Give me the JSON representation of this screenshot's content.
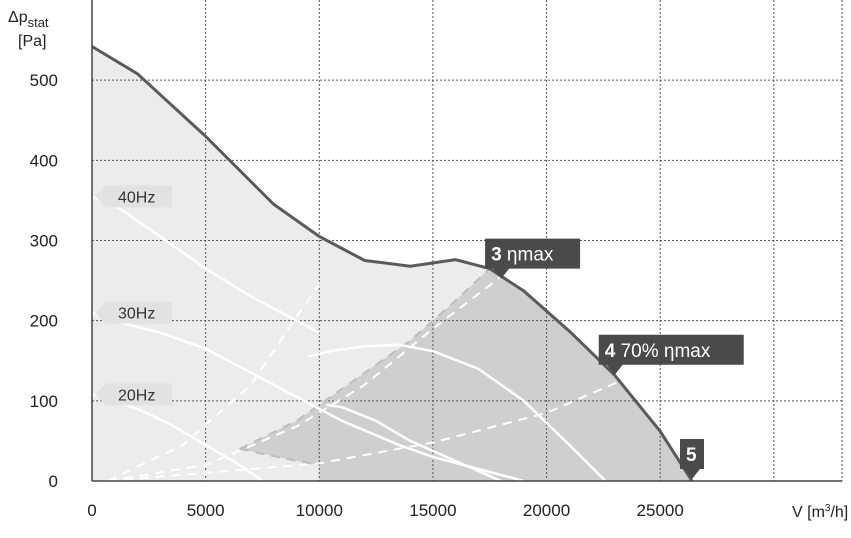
{
  "chart_data": {
    "type": "line",
    "y_axis_label": {
      "symbol": "Δp",
      "subscript": "stat",
      "unit": "[Pa]"
    },
    "x_axis_label": {
      "prefix": "V [m",
      "superscript": "3",
      "suffix": "/h]"
    },
    "xlim": [
      0,
      33000
    ],
    "ylim": [
      0,
      600
    ],
    "x_ticks": [
      0,
      5000,
      10000,
      15000,
      20000,
      25000
    ],
    "x_tick_labels": [
      "0",
      "5000",
      "10000",
      "15000",
      "20000",
      "25000"
    ],
    "y_ticks": [
      0,
      100,
      200,
      300,
      400,
      500
    ],
    "y_tick_labels": [
      "0",
      "100",
      "200",
      "300",
      "400",
      "500"
    ],
    "grid": true,
    "colors": {
      "max_curve": "#5a5a5a",
      "area_outer": "#ececec",
      "area_inner": "#cfcfcf",
      "frequency_curves": "#ffffff",
      "callout_bg": "#4a4a4a"
    },
    "max_curve": {
      "x": [
        0,
        2000,
        5000,
        8000,
        10000,
        12000,
        14000,
        16000,
        17500,
        19000,
        21000,
        23000,
        25000,
        26400
      ],
      "y": [
        542,
        508,
        430,
        345,
        305,
        275,
        268,
        276,
        265,
        237,
        187,
        132,
        62,
        0
      ]
    },
    "frequency_curves": [
      {
        "label": "40Hz",
        "x": [
          0,
          1200,
          3000,
          5000,
          7000,
          9000,
          10000
        ],
        "y": [
          355,
          340,
          305,
          265,
          230,
          200,
          185
        ]
      },
      {
        "label": "30Hz",
        "x": [
          0,
          1200,
          3000,
          5000,
          7000,
          9000,
          11000,
          13500,
          15000,
          17000,
          19000
        ],
        "y": [
          210,
          198,
          185,
          165,
          135,
          105,
          75,
          45,
          30,
          15,
          0
        ]
      },
      {
        "label": "20Hz",
        "x": [
          0,
          2000,
          3500,
          5000,
          6500,
          7500
        ],
        "y": [
          108,
          90,
          70,
          45,
          20,
          0
        ]
      }
    ],
    "hidden_frequency_curves": {
      "x": [
        [
          9500,
          10500,
          12000,
          13500,
          15000,
          17000,
          19000,
          21000,
          22600
        ],
        [
          10300,
          11000,
          12500,
          14000,
          16000,
          18000
        ]
      ],
      "y": [
        [
          155,
          162,
          168,
          170,
          162,
          140,
          100,
          45,
          0
        ],
        [
          95,
          92,
          75,
          50,
          25,
          0
        ]
      ]
    },
    "system_lines": [
      {
        "x": [
          700,
          4000,
          7000,
          9000,
          10000
        ],
        "y": [
          0,
          45,
          120,
          205,
          245
        ]
      },
      {
        "x": [
          700,
          5000,
          9000,
          12000,
          15000,
          18000
        ],
        "y": [
          0,
          20,
          68,
          120,
          190,
          255
        ]
      },
      {
        "x": [
          700,
          10000,
          15000,
          20000,
          23500
        ],
        "y": [
          0,
          22,
          48,
          85,
          128
        ]
      }
    ],
    "operating_area_outline": [
      {
        "x": [
          6500,
          9000,
          12000,
          14000,
          16000,
          17500
        ],
        "y": [
          40,
          75,
          135,
          175,
          225,
          265
        ]
      },
      {
        "x": [
          6500,
          8500,
          10000
        ],
        "y": [
          40,
          28,
          20
        ]
      }
    ],
    "callouts": [
      {
        "number": "3",
        "text": "ηmax",
        "x": 18000,
        "y": 255
      },
      {
        "number": "4",
        "text": "70% ηmax",
        "x": 23000,
        "y": 135
      },
      {
        "number": "5",
        "text": "",
        "x": 26400,
        "y": 5
      }
    ]
  }
}
